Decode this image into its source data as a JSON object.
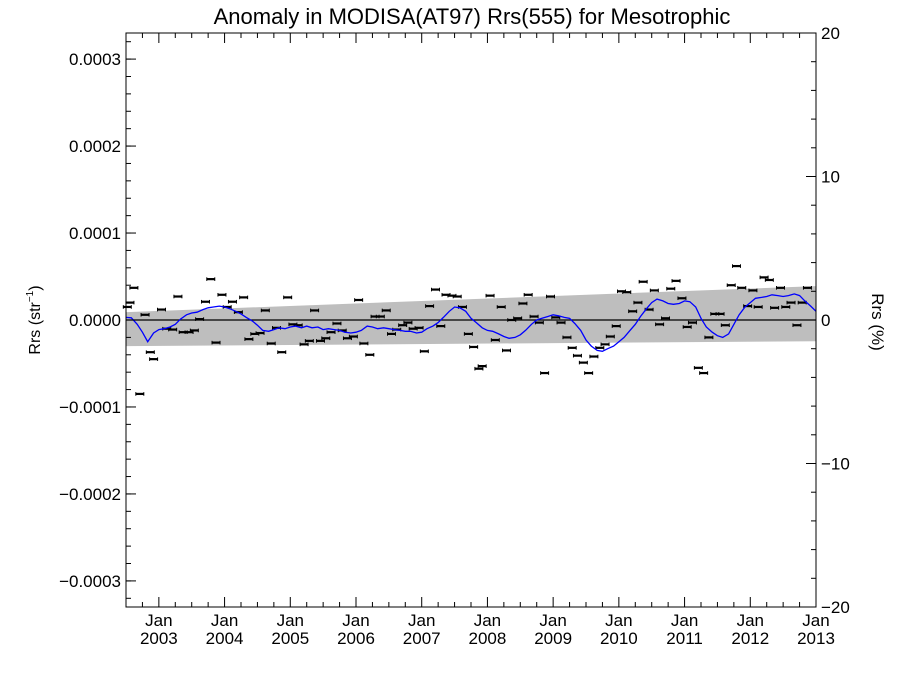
{
  "chart_data": {
    "type": "line",
    "title": "Anomaly in MODISA(AT97) Rrs(555) for Mesotrophic",
    "ylabel_left_main": "Rrs (str",
    "ylabel_left_sup": "−1",
    "ylabel_left_close": ")",
    "ylabel_right": "Rrs (%)",
    "x_range": [
      2002.5,
      2013.0
    ],
    "y_left_range": [
      -0.00033,
      0.00033
    ],
    "y_right_range": [
      -20,
      20
    ],
    "y_left_ticks": [
      {
        "value": 0.0003,
        "label": "0.0003"
      },
      {
        "value": 0.0002,
        "label": "0.0002"
      },
      {
        "value": 0.0001,
        "label": "0.0001"
      },
      {
        "value": 0.0,
        "label": "0.0000"
      },
      {
        "value": -0.0001,
        "label": "−0.0001"
      },
      {
        "value": -0.0002,
        "label": "−0.0002"
      },
      {
        "value": -0.0003,
        "label": "−0.0003"
      }
    ],
    "y_right_ticks": [
      {
        "value": 20,
        "label": "20"
      },
      {
        "value": 10,
        "label": "10"
      },
      {
        "value": 0,
        "label": "0"
      },
      {
        "value": -10,
        "label": "−10"
      },
      {
        "value": -20,
        "label": "−20"
      }
    ],
    "x_ticks": [
      {
        "value": 2003.0,
        "month": "Jan",
        "year": "2003"
      },
      {
        "value": 2004.0,
        "month": "Jan",
        "year": "2004"
      },
      {
        "value": 2005.0,
        "month": "Jan",
        "year": "2005"
      },
      {
        "value": 2006.0,
        "month": "Jan",
        "year": "2006"
      },
      {
        "value": 2007.0,
        "month": "Jan",
        "year": "2007"
      },
      {
        "value": 2008.0,
        "month": "Jan",
        "year": "2008"
      },
      {
        "value": 2009.0,
        "month": "Jan",
        "year": "2009"
      },
      {
        "value": 2010.0,
        "month": "Jan",
        "year": "2010"
      },
      {
        "value": 2011.0,
        "month": "Jan",
        "year": "2011"
      },
      {
        "value": 2012.0,
        "month": "Jan",
        "year": "2012"
      },
      {
        "value": 2013.0,
        "month": "Jan",
        "year": "2013"
      }
    ],
    "zero_line": 0.0,
    "trend_band": {
      "x": [
        2002.5,
        2013.0
      ],
      "upper": [
        9e-06,
        3.9e-05
      ],
      "lower": [
        -3e-05,
        -2.45e-05
      ]
    },
    "smoothed": {
      "color": "#0000ff",
      "x": [
        2002.5,
        2002.58,
        2002.67,
        2002.75,
        2002.83,
        2002.92,
        2003.0,
        2003.08,
        2003.17,
        2003.25,
        2003.33,
        2003.42,
        2003.5,
        2003.58,
        2003.67,
        2003.75,
        2003.83,
        2003.92,
        2004.0,
        2004.08,
        2004.17,
        2004.25,
        2004.33,
        2004.42,
        2004.5,
        2004.58,
        2004.67,
        2004.75,
        2004.83,
        2004.92,
        2005.0,
        2005.08,
        2005.17,
        2005.25,
        2005.33,
        2005.42,
        2005.5,
        2005.58,
        2005.67,
        2005.75,
        2005.83,
        2005.92,
        2006.0,
        2006.08,
        2006.17,
        2006.25,
        2006.33,
        2006.42,
        2006.5,
        2006.58,
        2006.67,
        2006.75,
        2006.83,
        2006.92,
        2007.0,
        2007.08,
        2007.17,
        2007.25,
        2007.33,
        2007.42,
        2007.5,
        2007.58,
        2007.67,
        2007.75,
        2007.83,
        2007.92,
        2008.0,
        2008.08,
        2008.17,
        2008.25,
        2008.33,
        2008.42,
        2008.5,
        2008.58,
        2008.67,
        2008.75,
        2008.83,
        2008.92,
        2009.0,
        2009.08,
        2009.17,
        2009.25,
        2009.33,
        2009.42,
        2009.5,
        2009.58,
        2009.67,
        2009.75,
        2009.83,
        2009.92,
        2010.0,
        2010.08,
        2010.17,
        2010.25,
        2010.33,
        2010.42,
        2010.5,
        2010.58,
        2010.67,
        2010.75,
        2010.83,
        2010.92,
        2011.0,
        2011.08,
        2011.17,
        2011.25,
        2011.33,
        2011.42,
        2011.5,
        2011.58,
        2011.67,
        2011.75,
        2011.83,
        2011.92,
        2012.0,
        2012.08,
        2012.17,
        2012.25,
        2012.33,
        2012.42,
        2012.5,
        2012.58,
        2012.67,
        2012.75,
        2012.83,
        2012.92,
        2013.0
      ],
      "y": [
        3e-06,
        2.5e-06,
        -5e-06,
        -1.4e-05,
        -2.5e-05,
        -1.5e-05,
        -1.1e-05,
        -1e-05,
        -8e-06,
        -5e-06,
        1e-06,
        6e-06,
        8e-06,
        9e-06,
        1.2e-05,
        1.4e-05,
        1.5e-05,
        1.6e-05,
        1.5e-05,
        1.3e-05,
        1e-05,
        7e-06,
        3e-06,
        -1e-06,
        -6e-06,
        -1.2e-05,
        -1.3e-05,
        -1.1e-05,
        -9e-06,
        -1e-05,
        -8e-06,
        -7e-06,
        -9e-06,
        -7e-06,
        -9e-06,
        -8e-06,
        -1.1e-05,
        -1e-05,
        -1.1e-05,
        -1.2e-05,
        -1.4e-05,
        -1.5e-05,
        -1.4e-05,
        -1.2e-05,
        -7e-06,
        -8e-06,
        -1e-05,
        -9e-06,
        -1e-05,
        -1.1e-05,
        -1.2e-05,
        -1.3e-05,
        -1.3e-05,
        -1.5e-05,
        -1.4e-05,
        -1e-05,
        -7e-06,
        -3e-06,
        3e-06,
        1e-05,
        1.5e-05,
        1.4e-05,
        1e-05,
        2e-06,
        -3e-06,
        -9e-06,
        -1.2e-05,
        -1.3e-05,
        -1.6e-05,
        -1.9e-05,
        -2.1e-05,
        -2e-05,
        -1.7e-05,
        -1.2e-05,
        -5e-06,
        0.0,
        2e-06,
        4e-06,
        6e-06,
        5e-06,
        3e-06,
        2e-06,
        -4e-06,
        -1.2e-05,
        -2.3e-05,
        -3e-05,
        -3.5e-05,
        -3.6e-05,
        -3.3e-05,
        -3e-05,
        -2.5e-05,
        -2e-05,
        -1.2e-05,
        -5e-06,
        4e-06,
        1.3e-05,
        2e-05,
        2.4e-05,
        2.2e-05,
        1.9e-05,
        1.8e-05,
        1.9e-05,
        2.2e-05,
        2.1e-05,
        1.5e-05,
        2e-06,
        -8e-06,
        -1.4e-05,
        -1.8e-05,
        -2e-05,
        -1.6e-05,
        -5e-06,
        6e-06,
        1.5e-05,
        2e-05,
        2.5e-05,
        2.6e-05,
        2.7e-05,
        2.9e-05,
        2.8e-05,
        2.7e-05,
        2.8e-05,
        3e-05,
        2.8e-05,
        2.2e-05,
        1.6e-05,
        1e-05
      ]
    },
    "points": [
      [
        2002.52,
        1.5e-05
      ],
      [
        2002.56,
        2e-05
      ],
      [
        2002.62,
        3.7e-05
      ],
      [
        2002.71,
        -8.5e-05
      ],
      [
        2002.79,
        6e-06
      ],
      [
        2002.87,
        -3.7e-05
      ],
      [
        2002.92,
        -4.5e-05
      ],
      [
        2003.04,
        1.2e-05
      ],
      [
        2003.12,
        -1e-05
      ],
      [
        2003.21,
        -1.1e-05
      ],
      [
        2003.29,
        2.7e-05
      ],
      [
        2003.37,
        -1.4e-05
      ],
      [
        2003.46,
        -1.4e-05
      ],
      [
        2003.54,
        -1.2e-05
      ],
      [
        2003.62,
        1e-06
      ],
      [
        2003.71,
        2.1e-05
      ],
      [
        2003.79,
        4.7e-05
      ],
      [
        2003.87,
        -2.6e-05
      ],
      [
        2003.96,
        2.9e-05
      ],
      [
        2004.04,
        1.5e-05
      ],
      [
        2004.12,
        2.1e-05
      ],
      [
        2004.21,
        9e-06
      ],
      [
        2004.29,
        2.6e-05
      ],
      [
        2004.37,
        -2.2e-05
      ],
      [
        2004.46,
        -1.6e-05
      ],
      [
        2004.54,
        -1.5e-05
      ],
      [
        2004.62,
        1.1e-05
      ],
      [
        2004.71,
        -2.7e-05
      ],
      [
        2004.79,
        -9e-06
      ],
      [
        2004.87,
        -3.7e-05
      ],
      [
        2004.96,
        2.6e-05
      ],
      [
        2005.04,
        -5e-06
      ],
      [
        2005.12,
        -6e-06
      ],
      [
        2005.21,
        -2.8e-05
      ],
      [
        2005.29,
        -2.4e-05
      ],
      [
        2005.37,
        1.1e-05
      ],
      [
        2005.46,
        -2.4e-05
      ],
      [
        2005.54,
        -2.1e-05
      ],
      [
        2005.62,
        -1.4e-05
      ],
      [
        2005.71,
        -4e-06
      ],
      [
        2005.79,
        -1.2e-05
      ],
      [
        2005.87,
        -2.1e-05
      ],
      [
        2005.96,
        -1.9e-05
      ],
      [
        2006.04,
        2.3e-05
      ],
      [
        2006.12,
        -2.7e-05
      ],
      [
        2006.21,
        -4e-05
      ],
      [
        2006.29,
        4e-06
      ],
      [
        2006.37,
        4e-06
      ],
      [
        2006.46,
        1.1e-05
      ],
      [
        2006.54,
        -1.6e-05
      ],
      [
        2006.62,
        -1.1e-05
      ],
      [
        2006.71,
        -6e-06
      ],
      [
        2006.79,
        -3e-06
      ],
      [
        2006.87,
        -1e-05
      ],
      [
        2006.96,
        -9e-06
      ],
      [
        2007.04,
        -3.6e-05
      ],
      [
        2007.12,
        1.6e-05
      ],
      [
        2007.21,
        3.5e-05
      ],
      [
        2007.29,
        -7e-06
      ],
      [
        2007.37,
        2.9e-05
      ],
      [
        2007.46,
        2.8e-05
      ],
      [
        2007.54,
        2.7e-05
      ],
      [
        2007.62,
        1.5e-05
      ],
      [
        2007.71,
        -1.6e-05
      ],
      [
        2007.79,
        -3.1e-05
      ],
      [
        2007.87,
        -5.6e-05
      ],
      [
        2007.92,
        -5.3e-05
      ],
      [
        2008.04,
        2.8e-05
      ],
      [
        2008.12,
        -2.3e-05
      ],
      [
        2008.21,
        1.5e-05
      ],
      [
        2008.29,
        -3.5e-05
      ],
      [
        2008.37,
        0.0
      ],
      [
        2008.46,
        2e-06
      ],
      [
        2008.54,
        1.9e-05
      ],
      [
        2008.62,
        2.9e-05
      ],
      [
        2008.71,
        4e-06
      ],
      [
        2008.79,
        -3e-06
      ],
      [
        2008.87,
        -6.1e-05
      ],
      [
        2008.96,
        2.7e-05
      ],
      [
        2009.04,
        3e-06
      ],
      [
        2009.12,
        -3e-06
      ],
      [
        2009.21,
        -2e-05
      ],
      [
        2009.29,
        -3.2e-05
      ],
      [
        2009.37,
        -4.1e-05
      ],
      [
        2009.46,
        -4.9e-05
      ],
      [
        2009.54,
        -6.1e-05
      ],
      [
        2009.62,
        -4.2e-05
      ],
      [
        2009.71,
        -3.2e-05
      ],
      [
        2009.79,
        -2.8e-05
      ],
      [
        2009.87,
        -1.9e-05
      ],
      [
        2009.96,
        -7e-06
      ],
      [
        2010.04,
        3.3e-05
      ],
      [
        2010.12,
        3.2e-05
      ],
      [
        2010.21,
        1e-05
      ],
      [
        2010.29,
        2e-05
      ],
      [
        2010.37,
        4.4e-05
      ],
      [
        2010.46,
        1.2e-05
      ],
      [
        2010.54,
        3.4e-05
      ],
      [
        2010.62,
        -5e-06
      ],
      [
        2010.71,
        2e-06
      ],
      [
        2010.79,
        3.6e-05
      ],
      [
        2010.87,
        4.5e-05
      ],
      [
        2010.96,
        2.5e-05
      ],
      [
        2011.04,
        -8e-06
      ],
      [
        2011.12,
        -3e-06
      ],
      [
        2011.21,
        -5.5e-05
      ],
      [
        2011.29,
        -6.1e-05
      ],
      [
        2011.37,
        -2e-05
      ],
      [
        2011.46,
        7e-06
      ],
      [
        2011.54,
        7e-06
      ],
      [
        2011.62,
        -6e-06
      ],
      [
        2011.71,
        4e-05
      ],
      [
        2011.79,
        6.2e-05
      ],
      [
        2011.87,
        3.7e-05
      ],
      [
        2011.96,
        1.6e-05
      ],
      [
        2012.04,
        3.4e-05
      ],
      [
        2012.12,
        1.5e-05
      ],
      [
        2012.21,
        4.9e-05
      ],
      [
        2012.29,
        4.6e-05
      ],
      [
        2012.37,
        1.4e-05
      ],
      [
        2012.46,
        3.7e-05
      ],
      [
        2012.54,
        1.5e-05
      ],
      [
        2012.62,
        2e-05
      ],
      [
        2012.71,
        -6e-06
      ],
      [
        2012.79,
        2e-05
      ],
      [
        2012.87,
        3.7e-05
      ]
    ]
  }
}
